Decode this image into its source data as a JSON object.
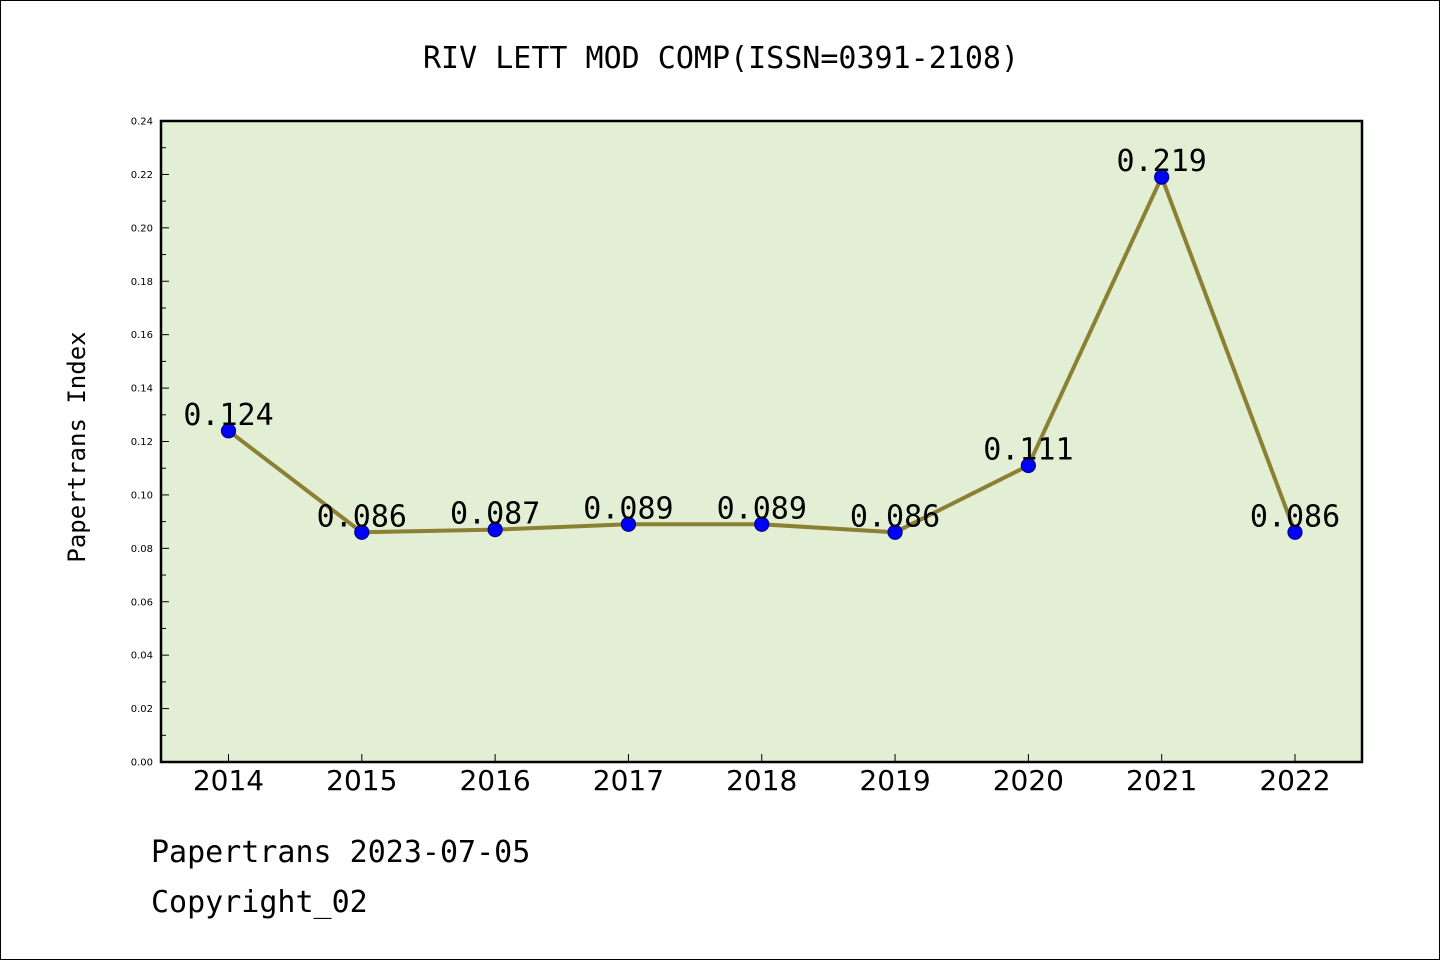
{
  "chart_data": {
    "type": "line",
    "title": "RIV LETT MOD COMP(ISSN=0391-2108)",
    "xlabel": "",
    "ylabel": "Papertrans Index",
    "categories": [
      "2014",
      "2015",
      "2016",
      "2017",
      "2018",
      "2019",
      "2020",
      "2021",
      "2022"
    ],
    "values": [
      0.124,
      0.086,
      0.087,
      0.089,
      0.089,
      0.086,
      0.111,
      0.219,
      0.086
    ],
    "data_labels": [
      "0.124",
      "0.086",
      "0.087",
      "0.089",
      "0.089",
      "0.086",
      "0.111",
      "0.219",
      "0.086"
    ],
    "ylim": [
      0,
      0.24
    ],
    "yticks": [
      "0.00",
      "0.02",
      "0.04",
      "0.06",
      "0.08",
      "0.10",
      "0.12",
      "0.14",
      "0.16",
      "0.18",
      "0.20",
      "0.22",
      "0.24"
    ],
    "grid": false,
    "legend": "none",
    "colors": {
      "plot_background": "#e2efd4",
      "line": "#8b8034",
      "marker": "#0000ff",
      "marker_edge": "#00008b"
    }
  },
  "footer": {
    "date_line": "Papertrans 2023-07-05",
    "copyright": "Copyright_02"
  }
}
